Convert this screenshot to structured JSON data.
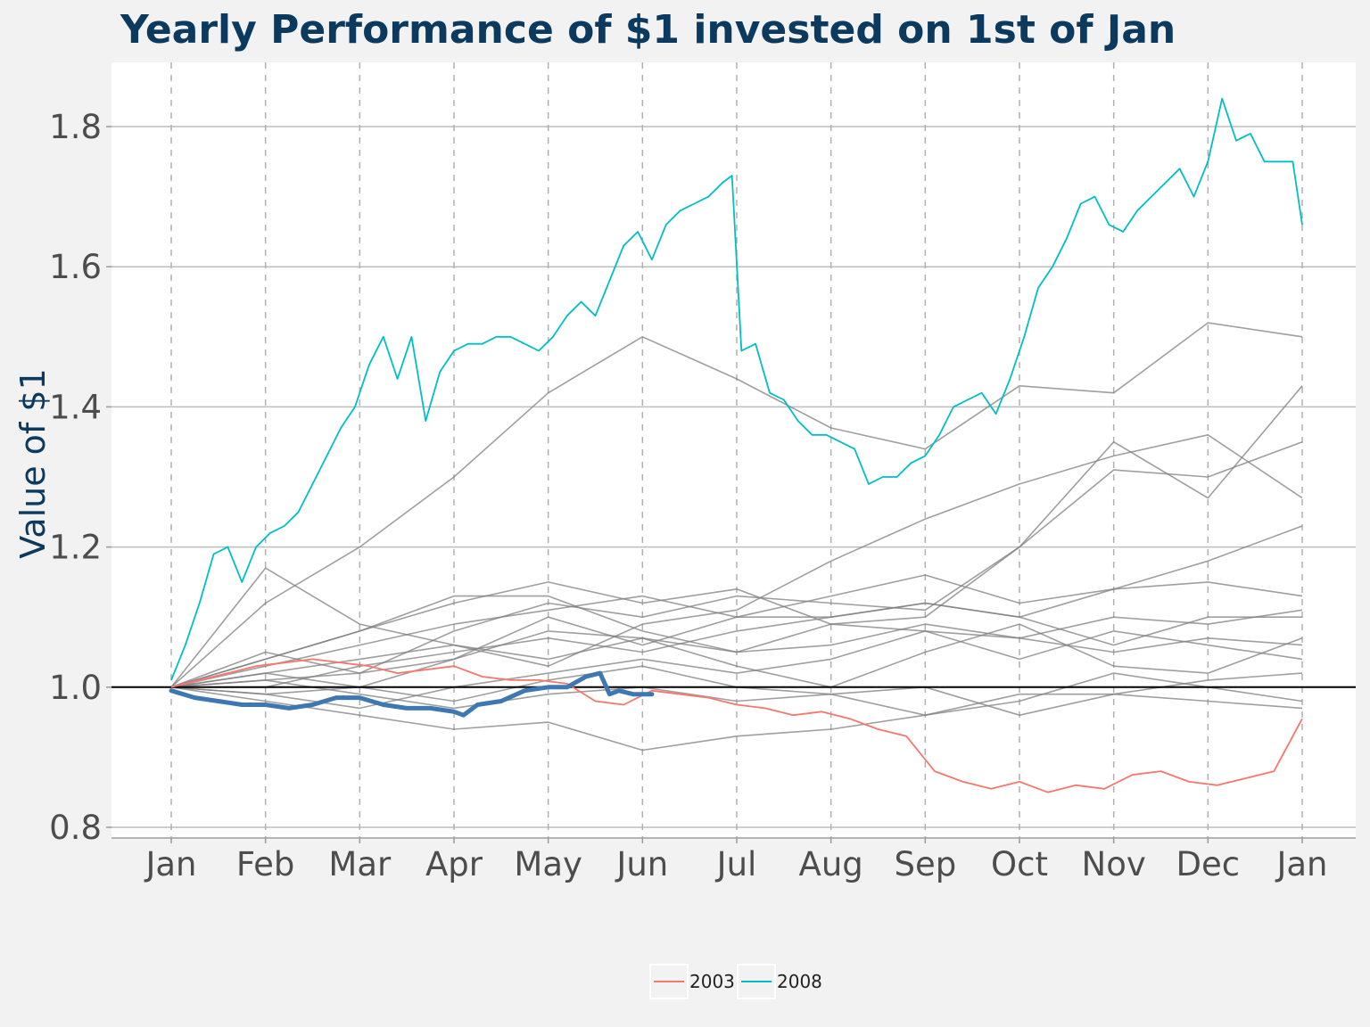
{
  "chart_data": {
    "type": "line",
    "title": "Yearly Performance of $1 invested on 1st of Jan",
    "xlabel": "",
    "ylabel": "Value of $1",
    "ylim": [
      0.8,
      1.88
    ],
    "y_ticks": [
      "0.8",
      "1.0",
      "1.2",
      "1.4",
      "1.6",
      "1.8"
    ],
    "x_ticks": [
      "Jan",
      "Feb",
      "Mar",
      "Apr",
      "May",
      "Jun",
      "Jul",
      "Aug",
      "Sep",
      "Oct",
      "Nov",
      "Dec",
      "Jan"
    ],
    "x_unit": "month index (0 = 1st Jan, 12 = 1st Jan next year)",
    "reference_line": 1.0,
    "grid": true,
    "legend": {
      "position": "bottom",
      "entries": [
        "2003",
        "2008"
      ]
    },
    "colors": {
      "2003": "#f8766d",
      "2008": "#00bfc4",
      "other_years": "#7f7f7f",
      "current_year": "#3e78b2"
    },
    "series": [
      {
        "name": "2003",
        "highlight": true,
        "x": [
          0,
          0.3,
          0.6,
          0.9,
          1.2,
          1.5,
          1.8,
          2.1,
          2.4,
          2.7,
          3.0,
          3.3,
          3.6,
          3.9,
          4.2,
          4.5,
          4.8,
          5.1,
          5.4,
          5.7,
          6.0,
          6.3,
          6.6,
          6.9,
          7.2,
          7.5,
          7.8,
          8.1,
          8.4,
          8.7,
          9.0,
          9.3,
          9.6,
          9.9,
          10.2,
          10.5,
          10.8,
          11.1,
          11.4,
          11.7,
          12.0
        ],
        "y": [
          1.0,
          1.01,
          1.02,
          1.03,
          1.035,
          1.04,
          1.035,
          1.03,
          1.02,
          1.025,
          1.03,
          1.015,
          1.01,
          1.01,
          1.005,
          0.98,
          0.975,
          0.995,
          0.99,
          0.985,
          0.975,
          0.97,
          0.96,
          0.965,
          0.955,
          0.94,
          0.93,
          0.88,
          0.865,
          0.855,
          0.865,
          0.85,
          0.86,
          0.855,
          0.875,
          0.88,
          0.865,
          0.86,
          0.87,
          0.88,
          0.955
        ]
      },
      {
        "name": "2008",
        "highlight": true,
        "x": [
          0,
          0.15,
          0.3,
          0.45,
          0.6,
          0.75,
          0.9,
          1.05,
          1.2,
          1.35,
          1.5,
          1.65,
          1.8,
          1.95,
          2.1,
          2.25,
          2.4,
          2.55,
          2.7,
          2.85,
          3.0,
          3.15,
          3.3,
          3.45,
          3.6,
          3.75,
          3.9,
          4.05,
          4.2,
          4.35,
          4.5,
          4.65,
          4.8,
          4.95,
          5.1,
          5.25,
          5.4,
          5.55,
          5.7,
          5.85,
          5.95,
          6.05,
          6.2,
          6.35,
          6.5,
          6.65,
          6.8,
          6.95,
          7.1,
          7.25,
          7.4,
          7.55,
          7.7,
          7.85,
          8.0,
          8.15,
          8.3,
          8.45,
          8.6,
          8.75,
          8.9,
          9.05,
          9.2,
          9.35,
          9.5,
          9.65,
          9.8,
          9.95,
          10.1,
          10.25,
          10.4,
          10.55,
          10.7,
          10.85,
          11.0,
          11.15,
          11.3,
          11.45,
          11.6,
          11.75,
          11.9,
          12.0
        ],
        "y": [
          1.01,
          1.06,
          1.12,
          1.19,
          1.2,
          1.15,
          1.2,
          1.22,
          1.23,
          1.25,
          1.29,
          1.33,
          1.37,
          1.4,
          1.46,
          1.5,
          1.44,
          1.5,
          1.38,
          1.45,
          1.48,
          1.49,
          1.49,
          1.5,
          1.5,
          1.49,
          1.48,
          1.5,
          1.53,
          1.55,
          1.53,
          1.58,
          1.63,
          1.65,
          1.61,
          1.66,
          1.68,
          1.69,
          1.7,
          1.72,
          1.73,
          1.48,
          1.49,
          1.42,
          1.41,
          1.38,
          1.36,
          1.36,
          1.35,
          1.34,
          1.29,
          1.3,
          1.3,
          1.32,
          1.33,
          1.36,
          1.4,
          1.41,
          1.42,
          1.39,
          1.44,
          1.5,
          1.57,
          1.6,
          1.64,
          1.69,
          1.7,
          1.66,
          1.65,
          1.68,
          1.7,
          1.72,
          1.74,
          1.7,
          1.75,
          1.84,
          1.78,
          1.79,
          1.75,
          1.75,
          1.75,
          1.66
        ]
      },
      {
        "name": "",
        "highlight": false,
        "x": [
          0,
          1,
          2,
          3,
          4,
          5,
          6,
          7,
          8,
          9,
          10,
          11,
          12
        ],
        "y": [
          1.0,
          1.12,
          1.2,
          1.3,
          1.42,
          1.5,
          1.44,
          1.37,
          1.34,
          1.43,
          1.42,
          1.52,
          1.5
        ]
      },
      {
        "name": "",
        "highlight": false,
        "x": [
          0,
          1,
          2,
          3,
          4,
          5,
          6,
          7,
          8,
          9,
          10,
          11,
          12
        ],
        "y": [
          1.0,
          1.17,
          1.09,
          1.06,
          1.03,
          1.09,
          1.11,
          1.18,
          1.24,
          1.29,
          1.33,
          1.36,
          1.27
        ]
      },
      {
        "name": "",
        "highlight": false,
        "x": [
          0,
          1,
          2,
          3,
          4,
          5,
          6,
          7,
          8,
          9,
          10,
          11,
          12
        ],
        "y": [
          1.0,
          1.04,
          1.08,
          1.12,
          1.15,
          1.12,
          1.14,
          1.09,
          1.1,
          1.2,
          1.35,
          1.27,
          1.43
        ]
      },
      {
        "name": "",
        "highlight": false,
        "x": [
          0,
          1,
          2,
          3,
          4,
          5,
          6,
          7,
          8,
          9,
          10,
          11,
          12
        ],
        "y": [
          1.0,
          1.01,
          1.02,
          1.08,
          1.12,
          1.1,
          1.13,
          1.12,
          1.11,
          1.2,
          1.31,
          1.3,
          1.35
        ]
      },
      {
        "name": "",
        "highlight": false,
        "x": [
          0,
          1,
          2,
          3,
          4,
          5,
          6,
          7,
          8,
          9,
          10,
          11,
          12
        ],
        "y": [
          1.0,
          0.99,
          1.0,
          1.04,
          1.1,
          1.06,
          1.1,
          1.1,
          1.12,
          1.1,
          1.14,
          1.18,
          1.23
        ]
      },
      {
        "name": "",
        "highlight": false,
        "x": [
          0,
          1,
          2,
          3,
          4,
          5,
          6,
          7,
          8,
          9,
          10,
          11,
          12
        ],
        "y": [
          1.0,
          1.03,
          1.06,
          1.09,
          1.11,
          1.13,
          1.1,
          1.13,
          1.16,
          1.12,
          1.14,
          1.15,
          1.13
        ]
      },
      {
        "name": "",
        "highlight": false,
        "x": [
          0,
          1,
          2,
          3,
          4,
          5,
          6,
          7,
          8,
          9,
          10,
          11,
          12
        ],
        "y": [
          1.0,
          1.05,
          1.02,
          1.04,
          1.08,
          1.07,
          1.05,
          1.09,
          1.08,
          1.07,
          1.1,
          1.09,
          1.11
        ]
      },
      {
        "name": "",
        "highlight": false,
        "x": [
          0,
          1,
          2,
          3,
          4,
          5,
          6,
          7,
          8,
          9,
          10,
          11,
          12
        ],
        "y": [
          1.0,
          0.98,
          0.96,
          0.94,
          0.95,
          0.91,
          0.93,
          0.94,
          0.96,
          0.98,
          1.02,
          1.0,
          0.98
        ]
      },
      {
        "name": "",
        "highlight": false,
        "x": [
          0,
          1,
          2,
          3,
          4,
          5,
          6,
          7,
          8,
          9,
          10,
          11,
          12
        ],
        "y": [
          1.0,
          0.99,
          0.97,
          1.0,
          1.02,
          1.04,
          1.02,
          1.04,
          1.08,
          1.04,
          1.08,
          1.06,
          1.04
        ]
      },
      {
        "name": "",
        "highlight": false,
        "x": [
          0,
          1,
          2,
          3,
          4,
          5,
          6,
          7,
          8,
          9,
          10,
          11,
          12
        ],
        "y": [
          1.0,
          1.01,
          0.99,
          0.97,
          0.99,
          1.0,
          0.98,
          0.99,
          0.96,
          0.99,
          0.99,
          0.98,
          0.97
        ]
      },
      {
        "name": "",
        "highlight": false,
        "x": [
          0,
          1,
          2,
          3,
          4,
          5,
          6,
          7,
          8,
          9,
          10,
          11,
          12
        ],
        "y": [
          1.0,
          1.02,
          1.04,
          1.06,
          1.04,
          1.07,
          1.03,
          1.0,
          1.05,
          1.09,
          1.03,
          1.02,
          1.07
        ]
      },
      {
        "name": "",
        "highlight": false,
        "x": [
          0,
          1,
          2,
          3,
          4,
          5,
          6,
          7,
          8,
          9,
          10,
          11,
          12
        ],
        "y": [
          1.0,
          1.0,
          1.03,
          1.05,
          1.07,
          1.05,
          1.08,
          1.1,
          1.12,
          1.1,
          1.06,
          1.1,
          1.1
        ]
      },
      {
        "name": "",
        "highlight": false,
        "x": [
          0,
          1,
          2,
          3,
          4,
          5,
          6,
          7,
          8,
          9,
          10,
          11,
          12
        ],
        "y": [
          1.0,
          1.02,
          1.0,
          0.98,
          1.01,
          1.03,
          1.0,
          0.99,
          1.0,
          0.96,
          0.99,
          1.01,
          1.02
        ]
      },
      {
        "name": "",
        "highlight": false,
        "x": [
          0,
          1,
          2,
          3,
          4,
          5,
          6,
          7,
          8,
          9,
          10,
          11,
          12
        ],
        "y": [
          1.0,
          1.04,
          1.08,
          1.13,
          1.13,
          1.08,
          1.05,
          1.06,
          1.09,
          1.07,
          1.05,
          1.07,
          1.06
        ]
      },
      {
        "name": "",
        "highlight": true,
        "current": true,
        "x": [
          0,
          0.25,
          0.5,
          0.75,
          1.0,
          1.25,
          1.5,
          1.75,
          2.0,
          2.25,
          2.5,
          2.75,
          3.0,
          3.1,
          3.25,
          3.5,
          3.75,
          4.0,
          4.2,
          4.4,
          4.55,
          4.65,
          4.75,
          4.9,
          5.0,
          5.1
        ],
        "y": [
          0.995,
          0.985,
          0.98,
          0.975,
          0.975,
          0.97,
          0.975,
          0.985,
          0.985,
          0.975,
          0.97,
          0.97,
          0.965,
          0.96,
          0.975,
          0.98,
          0.995,
          1.0,
          1.0,
          1.015,
          1.02,
          0.99,
          0.995,
          0.99,
          0.99,
          0.99
        ]
      }
    ]
  }
}
